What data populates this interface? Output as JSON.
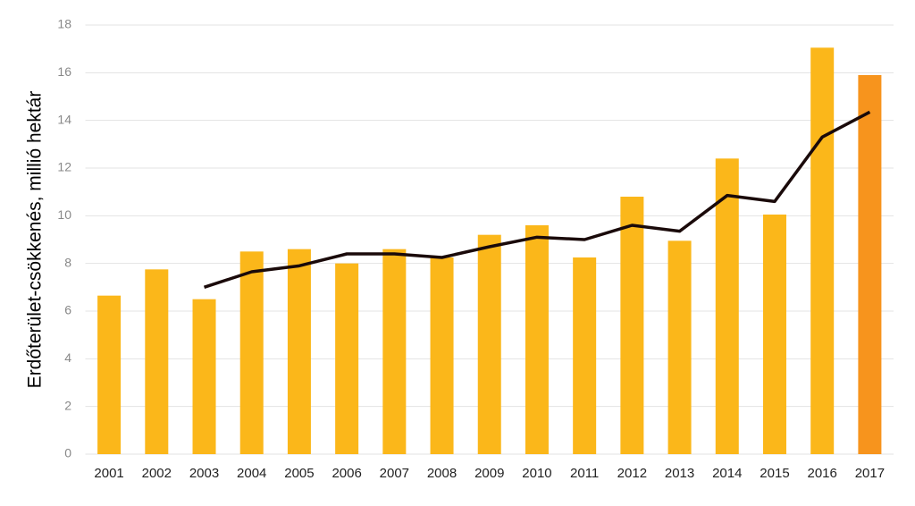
{
  "chart_data": {
    "type": "bar",
    "y_label": "Erdőterület-csökkenés, millió hektár",
    "categories": [
      "2001",
      "2002",
      "2003",
      "2004",
      "2005",
      "2006",
      "2007",
      "2008",
      "2009",
      "2010",
      "2011",
      "2012",
      "2013",
      "2014",
      "2015",
      "2016",
      "2017"
    ],
    "series": [
      {
        "type": "bar",
        "colors": [
          "#fbb71a",
          "#fbb71a",
          "#fbb71a",
          "#fbb71a",
          "#fbb71a",
          "#fbb71a",
          "#fbb71a",
          "#fbb71a",
          "#fbb71a",
          "#fbb71a",
          "#fbb71a",
          "#fbb71a",
          "#fbb71a",
          "#fbb71a",
          "#fbb71a",
          "#fbb71a",
          "#f7941d"
        ],
        "values": [
          6.65,
          7.75,
          6.5,
          8.5,
          8.6,
          8.0,
          8.6,
          8.25,
          9.2,
          9.6,
          8.25,
          10.8,
          8.95,
          12.4,
          10.05,
          17.05,
          15.9
        ]
      },
      {
        "type": "line",
        "color": "#1a0a0a",
        "values": [
          null,
          null,
          7.0,
          7.65,
          7.9,
          8.4,
          8.4,
          8.25,
          8.7,
          9.1,
          9.0,
          9.6,
          9.35,
          10.85,
          10.6,
          13.3,
          14.35
        ]
      }
    ],
    "ylim": [
      0,
      18
    ],
    "yticks": [
      0,
      2,
      4,
      6,
      8,
      10,
      12,
      14,
      16,
      18
    ],
    "grid": true
  }
}
